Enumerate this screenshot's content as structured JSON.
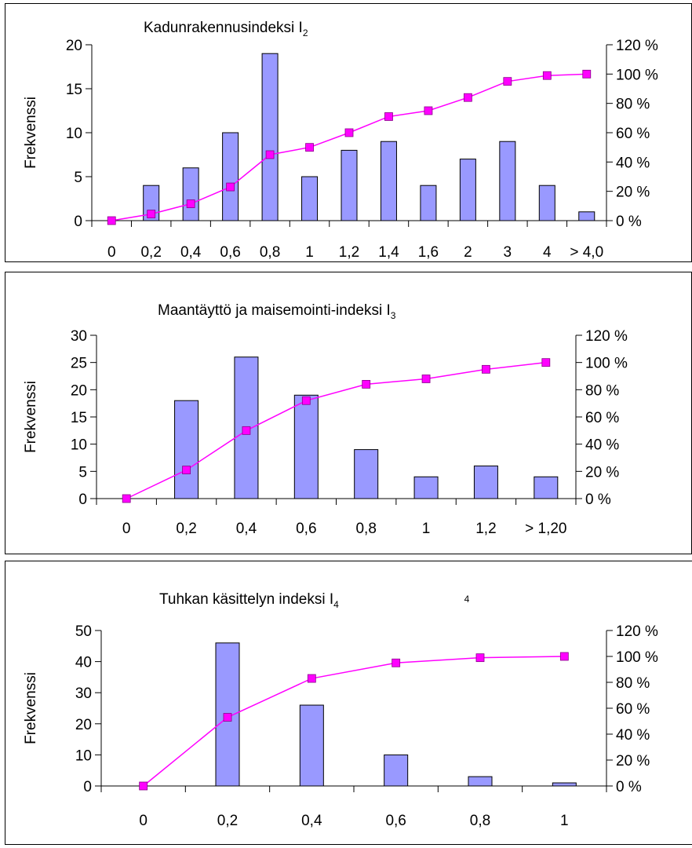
{
  "charts": [
    {
      "title": "Kadunrakennusindeksi I",
      "title_sub": "2",
      "extra_label": "",
      "ylabel": "Frekvenssi",
      "y_ticks": [
        "0",
        "5",
        "10",
        "15",
        "20"
      ],
      "y2_ticks": [
        "0 %",
        "20 %",
        "40 %",
        "60 %",
        "80 %",
        "100 %",
        "120 %"
      ],
      "categories": [
        "0",
        "0,2",
        "0,4",
        "0,6",
        "0,8",
        "1",
        "1,2",
        "1,4",
        "1,6",
        "2",
        "3",
        "4",
        "> 4,0"
      ]
    },
    {
      "title": "Maantäyttö ja maisemointi-indeksi I",
      "title_sub": "3",
      "extra_label": "",
      "ylabel": "Frekvenssi",
      "y_ticks": [
        "0",
        "5",
        "10",
        "15",
        "20",
        "25",
        "30"
      ],
      "y2_ticks": [
        "0 %",
        "20 %",
        "40 %",
        "60 %",
        "80 %",
        "100 %",
        "120 %"
      ],
      "categories": [
        "0",
        "0,2",
        "0,4",
        "0,6",
        "0,8",
        "1",
        "1,2",
        "> 1,20"
      ]
    },
    {
      "title": "Tuhkan käsittelyn indeksi I",
      "title_sub": "4",
      "extra_label": "4",
      "ylabel": "Frekvenssi",
      "y_ticks": [
        "0",
        "10",
        "20",
        "30",
        "40",
        "50"
      ],
      "y2_ticks": [
        "0 %",
        "20 %",
        "40 %",
        "60 %",
        "80 %",
        "100 %",
        "120 %"
      ],
      "categories": [
        "0",
        "0,2",
        "0,4",
        "0,6",
        "0,8",
        "1"
      ]
    }
  ],
  "colors": {
    "bar": "#9999ff",
    "line": "#ff00ff"
  },
  "chart_data": [
    {
      "type": "bar",
      "title": "Kadunrakennusindeksi I2",
      "ylabel": "Frekvenssi",
      "categories": [
        "0",
        "0,2",
        "0,4",
        "0,6",
        "0,8",
        "1",
        "1,2",
        "1,4",
        "1,6",
        "2",
        "3",
        "4",
        "> 4,0"
      ],
      "ylim": [
        0,
        20
      ],
      "y2lim": [
        0,
        120
      ],
      "series": [
        {
          "type": "bar",
          "values": [
            0,
            4,
            6,
            10,
            19,
            5,
            8,
            9,
            4,
            7,
            9,
            4,
            1
          ]
        },
        {
          "type": "line",
          "axis": "secondary",
          "values": [
            0,
            4.5,
            11.5,
            23,
            45,
            50,
            60,
            71,
            75,
            84,
            95,
            99,
            100
          ]
        }
      ],
      "grid": false,
      "legend": "none"
    },
    {
      "type": "bar",
      "title": "Maantäyttö ja maisemointi-indeksi I3",
      "ylabel": "Frekvenssi",
      "categories": [
        "0",
        "0,2",
        "0,4",
        "0,6",
        "0,8",
        "1",
        "1,2",
        "> 1,20"
      ],
      "ylim": [
        0,
        30
      ],
      "y2lim": [
        0,
        120
      ],
      "series": [
        {
          "type": "bar",
          "values": [
            0,
            18,
            26,
            19,
            9,
            4,
            6,
            4
          ]
        },
        {
          "type": "line",
          "axis": "secondary",
          "values": [
            0,
            21,
            50,
            72,
            84,
            88,
            95,
            100
          ]
        }
      ],
      "grid": false,
      "legend": "none"
    },
    {
      "type": "bar",
      "title": "Tuhkan käsittelyn indeksi I4",
      "ylabel": "Frekvenssi",
      "categories": [
        "0",
        "0,2",
        "0,4",
        "0,6",
        "0,8",
        "1"
      ],
      "ylim": [
        0,
        50
      ],
      "y2lim": [
        0,
        120
      ],
      "series": [
        {
          "type": "bar",
          "values": [
            0,
            46,
            26,
            10,
            3,
            1
          ]
        },
        {
          "type": "line",
          "axis": "secondary",
          "values": [
            0,
            53,
            83,
            95,
            99,
            100
          ]
        }
      ],
      "grid": false,
      "legend": "none"
    }
  ]
}
